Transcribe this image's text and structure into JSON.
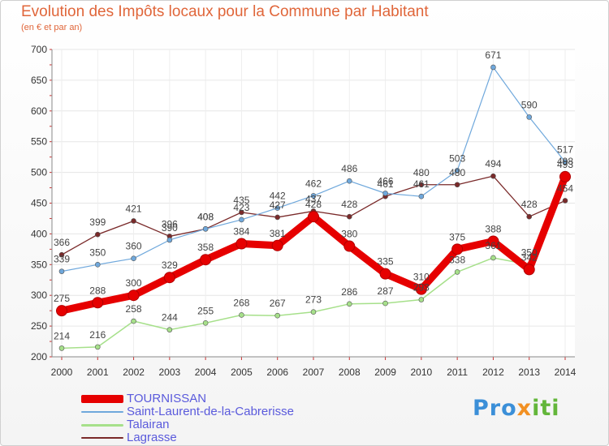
{
  "title": "Evolution des Impôts locaux pour la Commune par Habitant",
  "subtitle": "(en € et par an)",
  "logo": {
    "part1": "Pro",
    "part2": "x",
    "part3": "iti"
  },
  "chart_data": {
    "type": "line",
    "x": [
      "2000",
      "2001",
      "2002",
      "2003",
      "2004",
      "2005",
      "2006",
      "2007",
      "2008",
      "2009",
      "2010",
      "2011",
      "2012",
      "2013",
      "2014"
    ],
    "ylim": [
      200,
      700
    ],
    "yticks": [
      "200",
      "250",
      "300",
      "350",
      "400",
      "450",
      "500",
      "550",
      "600",
      "650",
      "700"
    ],
    "grid": true,
    "legend_position": "bottom-left",
    "series": [
      {
        "name": "TOURNISSAN",
        "color": "#e60000",
        "values": [
          275,
          288,
          300,
          329,
          358,
          384,
          381,
          428,
          380,
          335,
          310,
          375,
          388,
          342,
          493
        ],
        "labels": [
          "275",
          "288",
          "300",
          "329",
          "358",
          "384",
          "381",
          "428",
          "380",
          "335",
          "310",
          "375",
          "388",
          "342",
          "493"
        ]
      },
      {
        "name": "Saint-Laurent-de-la-Cabrerisse",
        "color": "#6fa8dc",
        "values": [
          339,
          350,
          360,
          390,
          408,
          423,
          442,
          462,
          486,
          466,
          461,
          503,
          671,
          590,
          517
        ],
        "labels": [
          "339",
          "350",
          "360",
          "390",
          "408",
          "423",
          "442",
          "462",
          "486",
          "466",
          "461",
          "503",
          "671",
          "590",
          "517"
        ]
      },
      {
        "name": "Talairan",
        "color": "#a6e08a",
        "values": [
          214,
          216,
          258,
          244,
          255,
          268,
          267,
          273,
          286,
          287,
          293,
          338,
          361,
          350,
          498
        ],
        "labels": [
          "214",
          "216",
          "258",
          "244",
          "255",
          "268",
          "267",
          "273",
          "286",
          "287",
          "293",
          "338",
          "361",
          "350",
          "498"
        ]
      },
      {
        "name": "Lagrasse",
        "color": "#7a2a2a",
        "values": [
          366,
          399,
          421,
          396,
          408,
          435,
          427,
          437,
          428,
          461,
          480,
          480,
          494,
          428,
          454
        ],
        "labels": [
          "366",
          "399",
          "421",
          "396",
          "408",
          "435",
          "427",
          "437",
          "428",
          "461",
          "480",
          "480",
          "494",
          "428",
          "454"
        ]
      }
    ]
  }
}
